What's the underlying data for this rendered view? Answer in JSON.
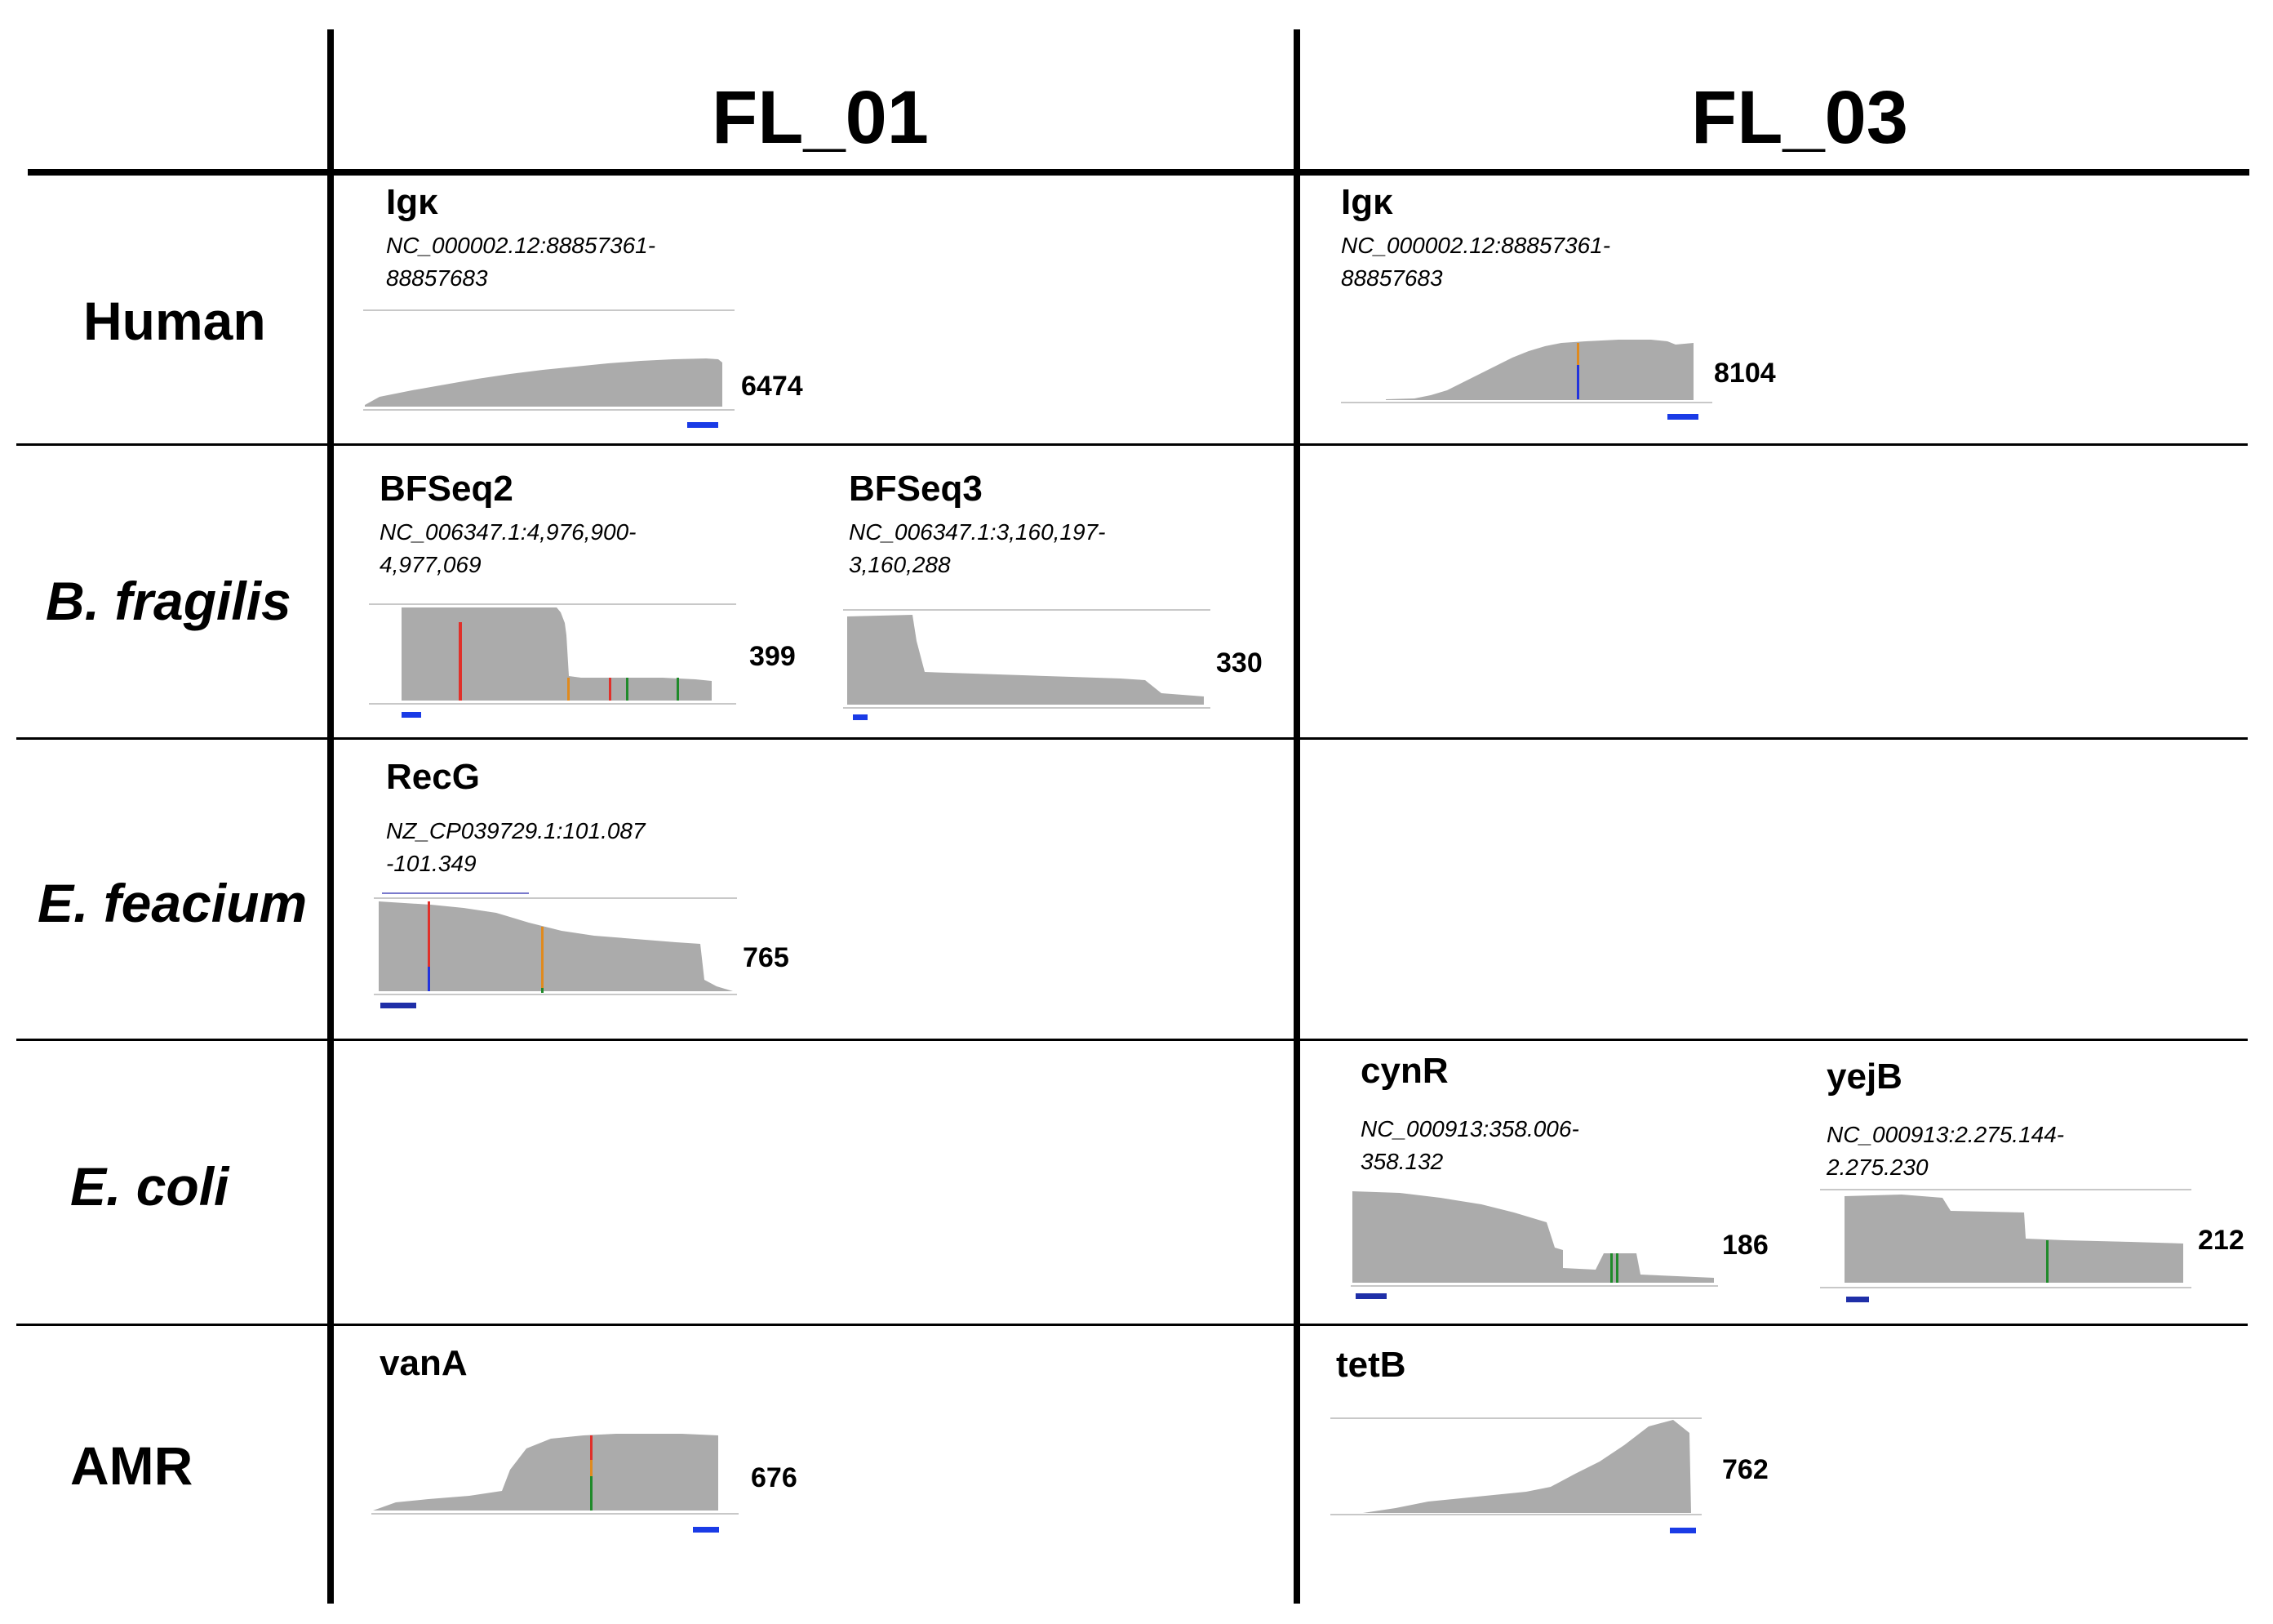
{
  "columns": [
    "FL_01",
    "FL_03"
  ],
  "rows": [
    "Human",
    "B. fragilis",
    "E. feacium",
    "E. coli",
    "AMR"
  ],
  "colors": {
    "coverage": "#ababab",
    "baseline": "#c8c8c8",
    "scalebar": "#1a3be6",
    "mismatch_red": "#e0302a",
    "mismatch_orange": "#e08a1e",
    "mismatch_green": "#1f8a2a",
    "mismatch_blue": "#2233dd"
  },
  "panels": {
    "human_fl01": {
      "gene": "Igκ",
      "coord": "NC_000002.12:88857361-\n88857683",
      "coverage": "6474"
    },
    "human_fl03": {
      "gene": "Igκ",
      "coord": "NC_000002.12:88857361-\n88857683",
      "coverage": "8104"
    },
    "bfrag_seq2": {
      "gene": "BFSeq2",
      "coord": "NC_006347.1:4,976,900-\n4,977,069",
      "coverage": "399"
    },
    "bfrag_seq3": {
      "gene": "BFSeq3",
      "coord": "NC_006347.1:3,160,197-\n3,160,288",
      "coverage": "330"
    },
    "efea_recg": {
      "gene": "RecG",
      "coord": "NZ_CP039729.1:101.087\n-101.349",
      "coverage": "765"
    },
    "ecoli_cynr": {
      "gene": "cynR",
      "coord": "NC_000913:358.006-\n358.132",
      "coverage": "186"
    },
    "ecoli_yejb": {
      "gene": "yejB",
      "coord": "NC_000913:2.275.144-\n2.275.230",
      "coverage": "212"
    },
    "amr_vana": {
      "gene": "vanA",
      "coverage": "676"
    },
    "amr_tetb": {
      "gene": "tetB",
      "coverage": "762"
    }
  }
}
